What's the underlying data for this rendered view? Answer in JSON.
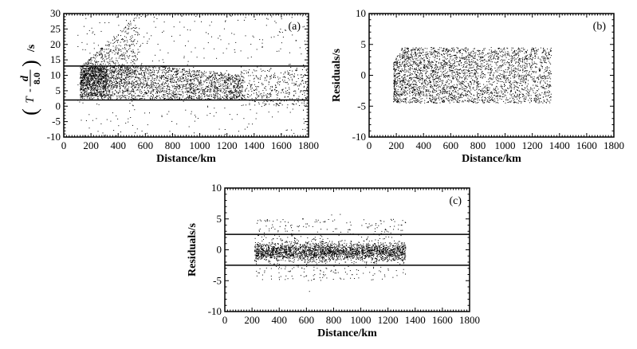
{
  "chart_data": [
    {
      "type": "scatter",
      "panel_label": "(a)",
      "xlabel": "Distance/km",
      "ylabel_parts": {
        "open": "(",
        "T": "T",
        "minus": "-",
        "num": "d",
        "den": "8.0",
        "close": ")",
        "unit": "/s"
      },
      "xlim": [
        0,
        1800
      ],
      "ylim": [
        -10,
        30
      ],
      "xticks": [
        0,
        200,
        400,
        600,
        800,
        1000,
        1200,
        1400,
        1600,
        1800
      ],
      "yticks": [
        -10,
        -5,
        0,
        5,
        10,
        15,
        20,
        25,
        30
      ],
      "hlines": [
        13,
        2
      ],
      "scatter_regions": [
        {
          "x": [
            120,
            1320
          ],
          "y": [
            2,
            13
          ],
          "density": "high",
          "trend": "upper edge 13 at x<700, tapering to 10 at 1320"
        },
        {
          "x": [
            120,
            650
          ],
          "y": [
            5,
            28
          ],
          "density": "high",
          "trend": "diagonal wedge rising from y=13 at x=130 to y=28 at x=500"
        },
        {
          "x": [
            1300,
            1800
          ],
          "y": [
            0,
            12
          ],
          "density": "medium"
        },
        {
          "x": [
            100,
            1800
          ],
          "y": [
            -10,
            30
          ],
          "density": "sparse"
        }
      ]
    },
    {
      "type": "scatter",
      "panel_label": "(b)",
      "xlabel": "Distance/km",
      "ylabel": "Residuals/s",
      "xlim": [
        0,
        1800
      ],
      "ylim": [
        -10,
        10
      ],
      "xticks": [
        0,
        200,
        400,
        600,
        800,
        1000,
        1200,
        1400,
        1600,
        1800
      ],
      "yticks": [
        -10,
        -5,
        0,
        5,
        10
      ],
      "hlines": [],
      "scatter_regions": [
        {
          "x": [
            180,
            1340
          ],
          "y": [
            -4.5,
            4.5
          ],
          "density": "high",
          "trend": "density fades toward x=1340",
          "clip": "upper-left corner cut"
        }
      ]
    },
    {
      "type": "scatter",
      "panel_label": "(c)",
      "xlabel": "Distance/km",
      "ylabel": "Residuals/s",
      "xlim": [
        0,
        1800
      ],
      "ylim": [
        -10,
        10
      ],
      "xticks": [
        0,
        200,
        400,
        600,
        800,
        1000,
        1200,
        1400,
        1600,
        1800
      ],
      "yticks": [
        -10,
        -5,
        0,
        5,
        10
      ],
      "hlines": [
        2.5,
        -2.5
      ],
      "scatter_regions": [
        {
          "x": [
            220,
            1330
          ],
          "y": [
            -2.5,
            2.0
          ],
          "density": "high"
        },
        {
          "x": [
            220,
            1330
          ],
          "y": [
            -5,
            5
          ],
          "density": "sparse"
        }
      ]
    }
  ]
}
